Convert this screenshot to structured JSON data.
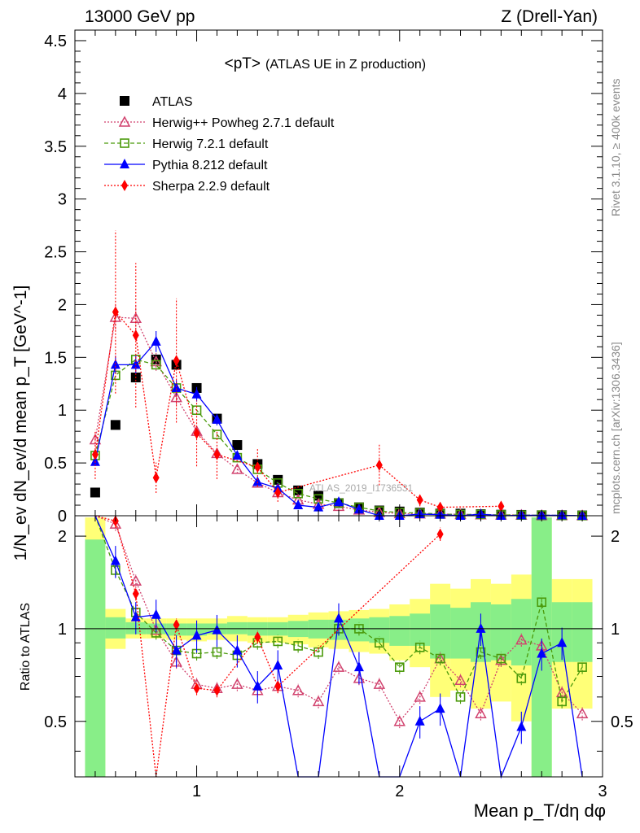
{
  "header": {
    "left": "13000 GeV pp",
    "right": "Z (Drell-Yan)"
  },
  "side_labels": {
    "rivet": "Rivet 3.1.10, ≥ 400k events",
    "mcplots": "mcplots.cern.ch [arXiv:1306.3436]"
  },
  "watermark": "ATLAS_2019_I1736531",
  "colors": {
    "atlas": "#000000",
    "herwigpp": "#d1426e",
    "herwig7": "#4b9a0b",
    "pythia": "#0000ff",
    "sherpa": "#ff0000",
    "band_inner": "#88ee88",
    "band_outer": "#ffff77"
  },
  "chart_data": [
    {
      "type": "scatter",
      "title": "<pT>",
      "subtitle": "(ATLAS UE in Z production)",
      "ylabel": "1/N_ev dN_ev/d mean p_T [GeV^-1]",
      "xlabel": "Mean p_T/dη dφ",
      "xlim": [
        0.4,
        3.0
      ],
      "ylim": [
        0,
        4.6
      ],
      "yticks": [
        0,
        0.5,
        1,
        1.5,
        2,
        2.5,
        3,
        3.5,
        4,
        4.5
      ],
      "ytick_labels": [
        "0",
        "0.5",
        "1",
        "1.5",
        "2",
        "2.5",
        "3",
        "3.5",
        "4",
        "4.5"
      ],
      "x": [
        0.5,
        0.6,
        0.7,
        0.8,
        0.9,
        1.0,
        1.1,
        1.2,
        1.3,
        1.4,
        1.5,
        1.6,
        1.7,
        1.8,
        1.9,
        2.0,
        2.1,
        2.2,
        2.3,
        2.4,
        2.5,
        2.6,
        2.7,
        2.8,
        2.9
      ],
      "series": [
        {
          "key": "atlas",
          "name": "ATLAS",
          "values": [
            0.22,
            0.86,
            1.31,
            1.48,
            1.43,
            1.21,
            0.92,
            0.67,
            0.49,
            0.34,
            0.24,
            0.19,
            0.12,
            0.08,
            0.05,
            0.04,
            0.03,
            0.02,
            0.02,
            0.015,
            0.01,
            0.008,
            0.005,
            0.005,
            0.003
          ]
        },
        {
          "key": "herwigpp",
          "name": "Herwig++ Powheg 2.7.1 default",
          "values": [
            0.72,
            1.88,
            1.87,
            1.46,
            1.12,
            0.8,
            0.59,
            0.44,
            0.31,
            0.22,
            0.15,
            0.11,
            0.09,
            0.055,
            0.033,
            0.02,
            0.018,
            0.017,
            0.013,
            0.01,
            0.008,
            0.007,
            0.004,
            0.003,
            0.002
          ]
        },
        {
          "key": "herwig7",
          "name": "Herwig 7.2.1 default",
          "values": [
            0.57,
            1.33,
            1.48,
            1.43,
            1.21,
            1.0,
            0.77,
            0.55,
            0.44,
            0.31,
            0.21,
            0.16,
            0.12,
            0.08,
            0.045,
            0.03,
            0.026,
            0.016,
            0.012,
            0.013,
            0.008,
            0.006,
            0.006,
            0.003,
            0.002
          ]
        },
        {
          "key": "pythia",
          "name": "Pythia 8.212 default",
          "values": [
            0.51,
            1.43,
            1.43,
            1.65,
            1.21,
            1.15,
            0.91,
            0.57,
            0.32,
            0.26,
            0.1,
            0.08,
            0.13,
            0.06,
            0.0,
            0.0,
            0.015,
            0.011,
            0.0,
            0.015,
            0.0,
            0.005,
            0.004,
            0.005,
            0.0
          ]
        },
        {
          "key": "sherpa",
          "name": "Sherpa 2.2.9 default",
          "values": [
            0.58,
            1.93,
            1.71,
            0.36,
            1.47,
            0.78,
            0.58,
            null,
            0.46,
            0.22,
            null,
            null,
            null,
            null,
            0.48,
            null,
            0.15,
            0.08,
            null,
            null,
            0.09,
            null,
            null,
            null,
            null
          ]
        }
      ]
    },
    {
      "type": "scatter",
      "ylabel": "Ratio to ATLAS",
      "ylim": [
        0.33,
        2.33
      ],
      "yticks": [
        0.5,
        1,
        2
      ],
      "ytick_labels": [
        "0.5",
        "1",
        "2"
      ],
      "xticks": [
        1,
        2,
        3
      ],
      "xtick_labels": [
        "1",
        "2",
        "3"
      ],
      "reference": 1,
      "ratios": {
        "herwigpp": [
          3.2,
          2.19,
          1.43,
          0.99,
          0.78,
          0.66,
          0.64,
          0.66,
          0.63,
          0.65,
          0.63,
          0.58,
          0.75,
          0.69,
          0.66,
          0.5,
          0.6,
          0.8,
          0.68,
          0.53,
          0.79,
          0.92,
          0.88,
          0.62,
          0.53
        ],
        "herwig7": [
          2.59,
          1.55,
          1.13,
          0.97,
          0.85,
          0.83,
          0.84,
          0.82,
          0.9,
          0.91,
          0.88,
          0.84,
          1.0,
          1.0,
          0.9,
          0.75,
          0.87,
          0.8,
          0.6,
          0.84,
          0.8,
          0.69,
          1.22,
          0.58,
          0.75
        ],
        "pythia": [
          2.33,
          1.66,
          1.09,
          1.11,
          0.85,
          0.95,
          0.99,
          0.85,
          0.65,
          0.76,
          0.2,
          0.25,
          1.08,
          0.75,
          0.2,
          0.2,
          0.5,
          0.55,
          0.2,
          1.0,
          0.2,
          0.48,
          0.83,
          0.9,
          0.2
        ],
        "sherpa": [
          2.64,
          2.24,
          1.3,
          0.24,
          1.03,
          0.64,
          0.63,
          null,
          0.94,
          0.65,
          null,
          null,
          null,
          null,
          null,
          null,
          null,
          2.03,
          null,
          null,
          null,
          null,
          null,
          null,
          null
        ]
      },
      "band_inner": [
        [
          1.95,
          0.33
        ],
        [
          1.09,
          0.93
        ],
        [
          1.05,
          0.96
        ],
        [
          1.04,
          0.96
        ],
        [
          1.04,
          0.95
        ],
        [
          1.04,
          0.95
        ],
        [
          1.04,
          0.96
        ],
        [
          1.05,
          0.96
        ],
        [
          1.05,
          0.95
        ],
        [
          1.05,
          0.95
        ],
        [
          1.06,
          0.94
        ],
        [
          1.07,
          0.93
        ],
        [
          1.07,
          0.92
        ],
        [
          1.08,
          0.91
        ],
        [
          1.09,
          0.9
        ],
        [
          1.1,
          0.88
        ],
        [
          1.12,
          0.88
        ],
        [
          1.2,
          0.8
        ],
        [
          1.17,
          0.8
        ],
        [
          1.22,
          0.78
        ],
        [
          1.2,
          0.79
        ],
        [
          1.25,
          0.76
        ],
        [
          2.3,
          0.33
        ],
        [
          1.22,
          0.78
        ],
        [
          1.22,
          0.78
        ]
      ],
      "band_outer": [
        [
          2.3,
          0.33
        ],
        [
          1.16,
          0.86
        ],
        [
          1.08,
          0.93
        ],
        [
          1.08,
          0.93
        ],
        [
          1.08,
          0.92
        ],
        [
          1.08,
          0.91
        ],
        [
          1.08,
          0.92
        ],
        [
          1.1,
          0.91
        ],
        [
          1.09,
          0.9
        ],
        [
          1.09,
          0.9
        ],
        [
          1.11,
          0.89
        ],
        [
          1.13,
          0.87
        ],
        [
          1.14,
          0.86
        ],
        [
          1.15,
          0.84
        ],
        [
          1.16,
          0.83
        ],
        [
          1.2,
          0.79
        ],
        [
          1.25,
          0.75
        ],
        [
          1.4,
          0.6
        ],
        [
          1.35,
          0.63
        ],
        [
          1.45,
          0.55
        ],
        [
          1.4,
          0.58
        ],
        [
          1.5,
          0.5
        ],
        [
          2.3,
          0.33
        ],
        [
          1.45,
          0.55
        ],
        [
          1.45,
          0.55
        ]
      ]
    }
  ]
}
